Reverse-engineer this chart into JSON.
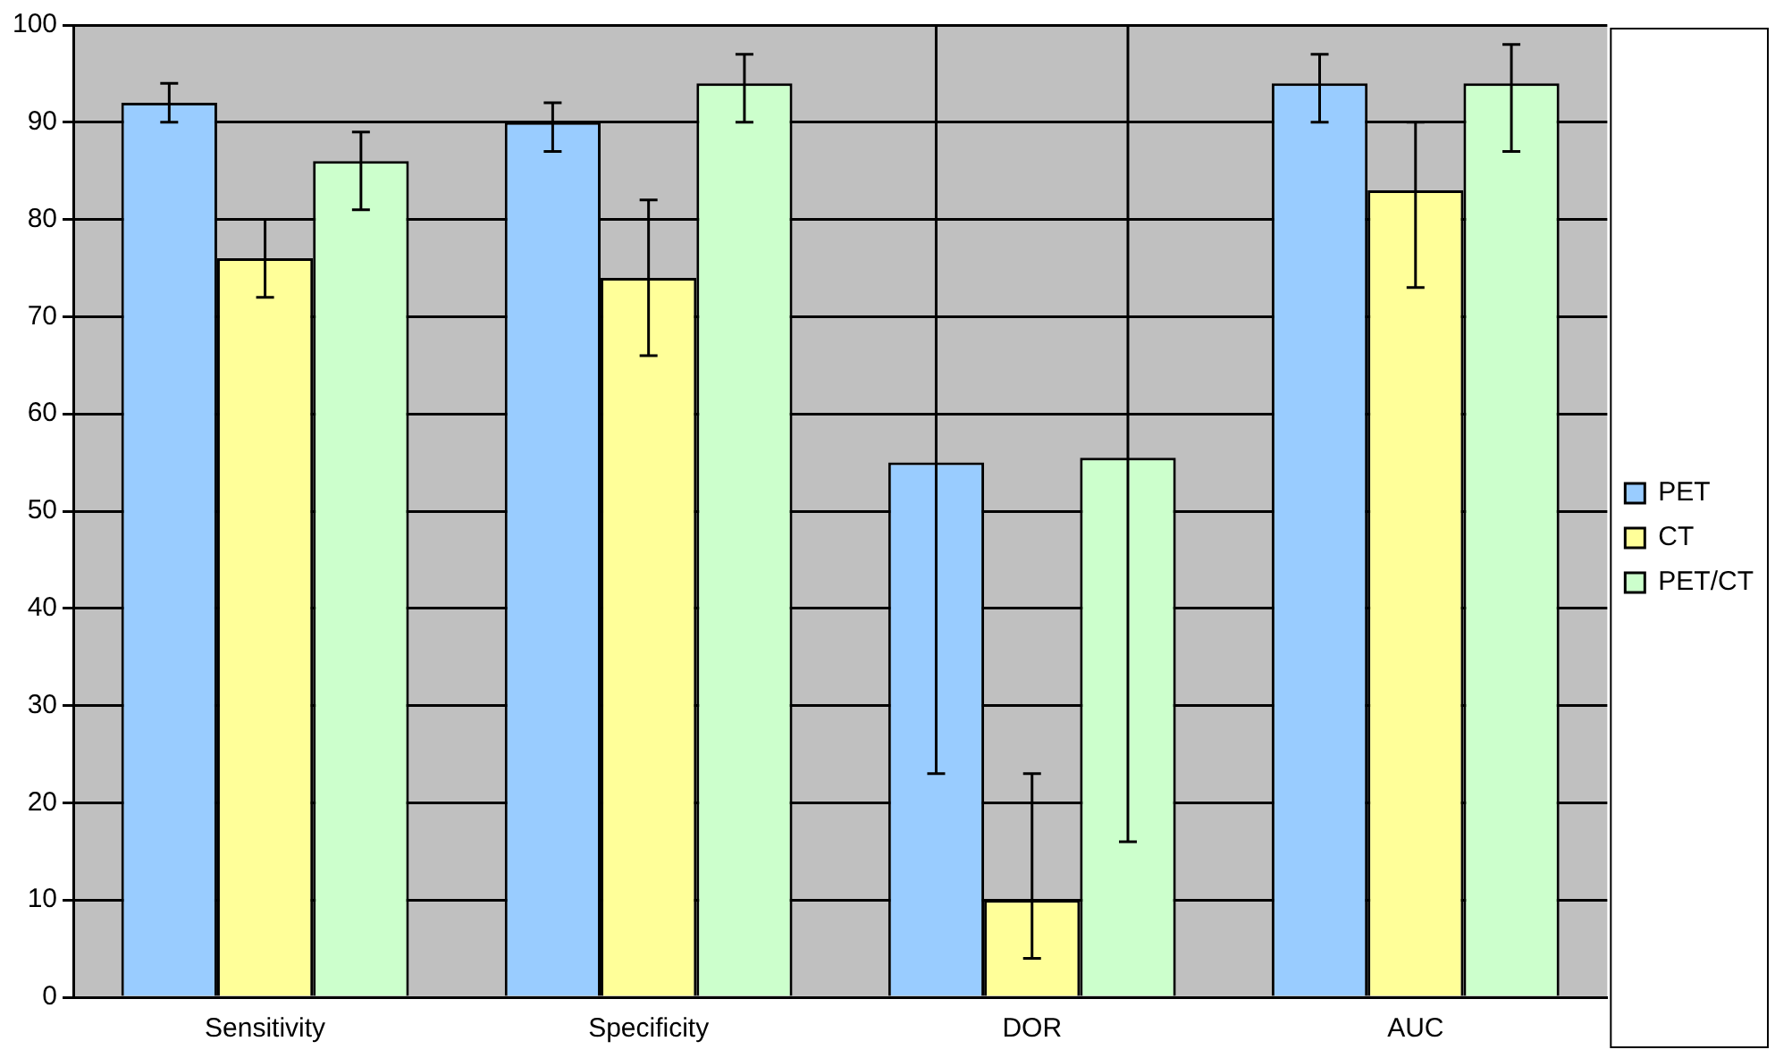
{
  "chart_data": {
    "type": "bar",
    "categories": [
      "Sensitivity",
      "Specificity",
      "DOR",
      "AUC"
    ],
    "series": [
      {
        "name": "PET",
        "color": "#99ccff",
        "values": [
          92,
          90,
          55,
          94
        ],
        "errors": [
          [
            90,
            94
          ],
          [
            87,
            92
          ],
          [
            23,
            100
          ],
          [
            90,
            97
          ]
        ]
      },
      {
        "name": "CT",
        "color": "#ffff99",
        "values": [
          76,
          74,
          10,
          83
        ],
        "errors": [
          [
            72,
            80
          ],
          [
            66,
            82
          ],
          [
            4,
            23
          ],
          [
            73,
            90
          ]
        ]
      },
      {
        "name": "PET/CT",
        "color": "#ccffcc",
        "values": [
          86,
          94,
          55.5,
          94
        ],
        "errors": [
          [
            81,
            89
          ],
          [
            90,
            97
          ],
          [
            16,
            100
          ],
          [
            87,
            98
          ]
        ]
      }
    ],
    "ylim": [
      0,
      100
    ],
    "yticks": [
      0,
      10,
      20,
      30,
      40,
      50,
      60,
      70,
      80,
      90,
      100
    ],
    "grid": "y",
    "legend": "right"
  }
}
